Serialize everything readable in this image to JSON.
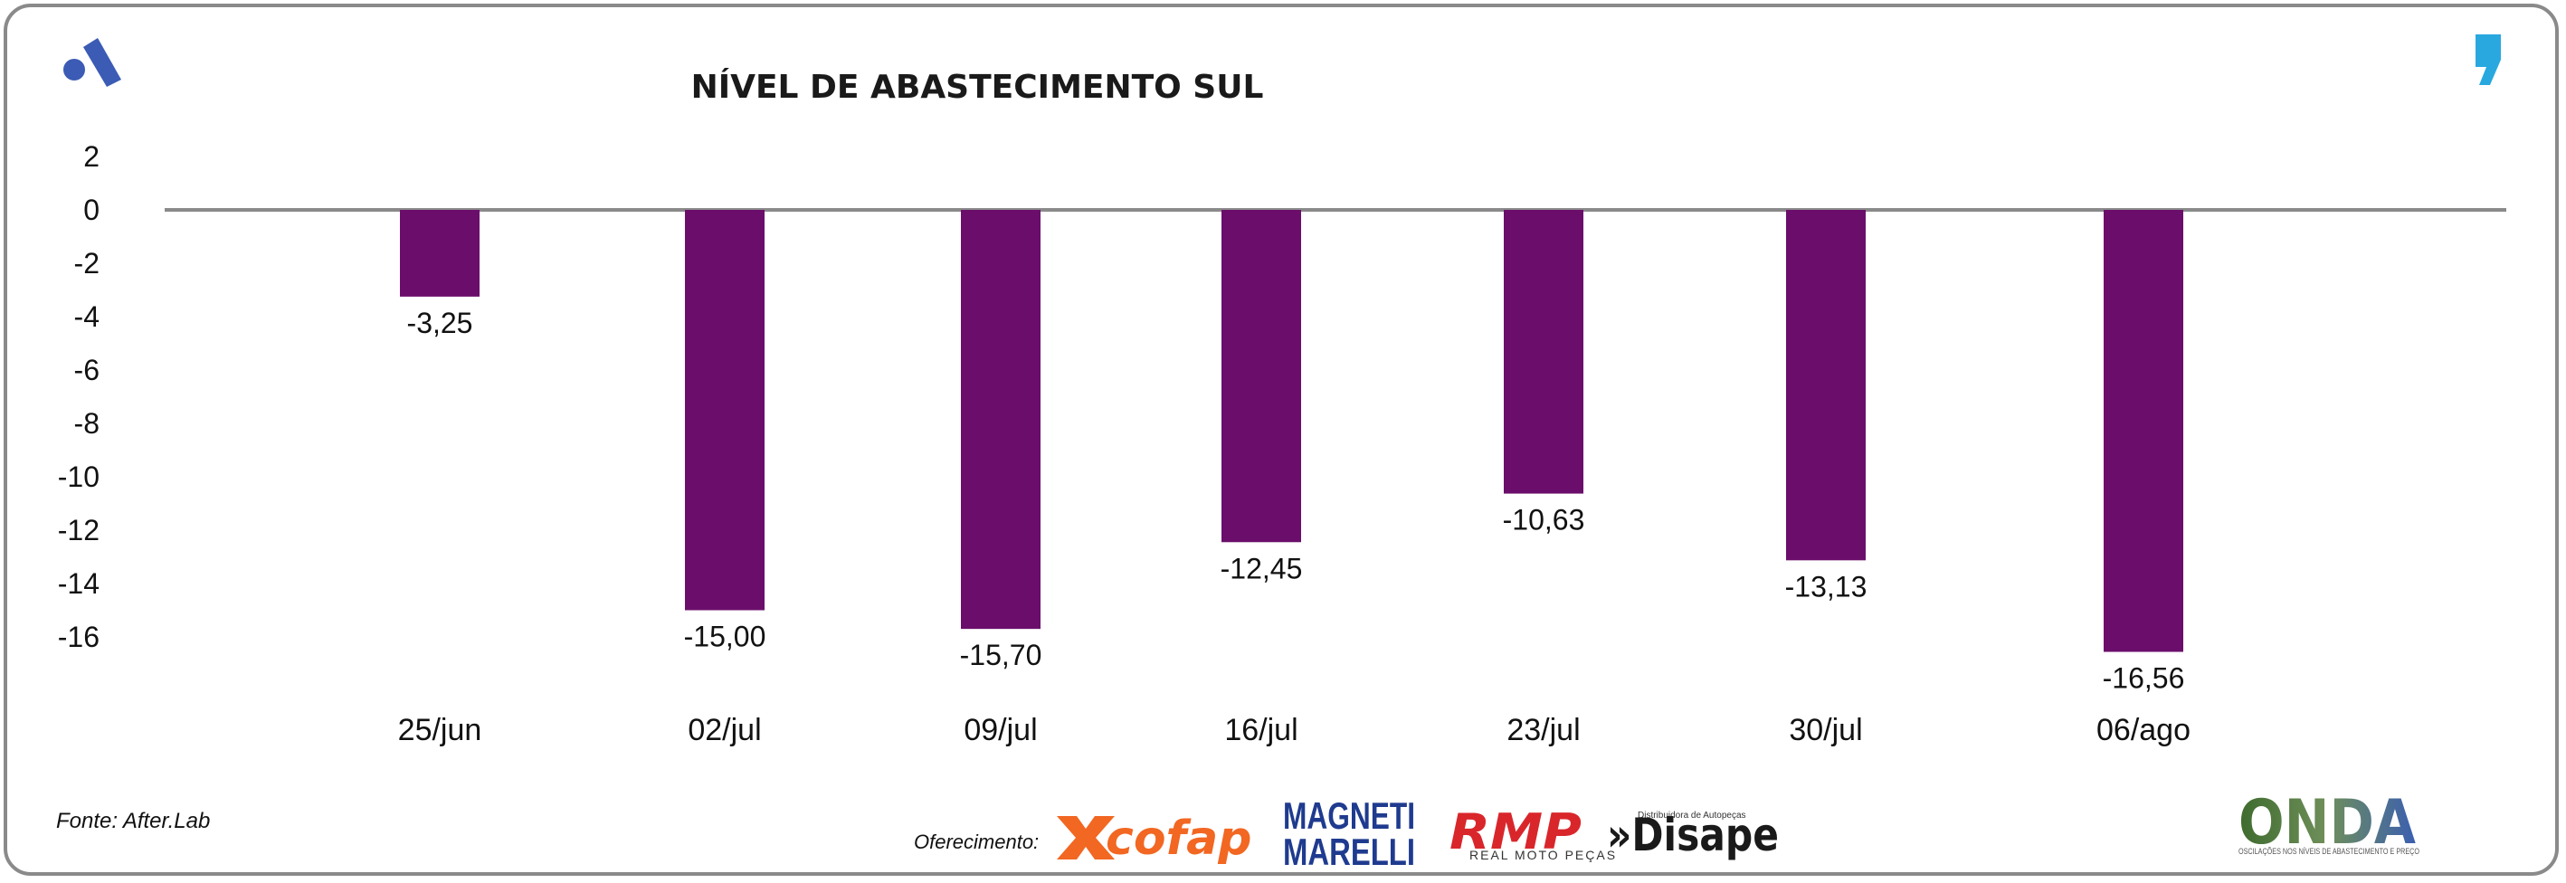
{
  "chart_data": {
    "type": "bar",
    "title": "NÍVEL DE ABASTECIMENTO SUL",
    "categories": [
      "25/jun",
      "02/jul",
      "09/jul",
      "16/jul",
      "23/jul",
      "30/jul",
      "06/ago"
    ],
    "values": [
      -3.25,
      -15.0,
      -15.7,
      -12.45,
      -10.63,
      -13.13,
      -16.56
    ],
    "value_labels": [
      "-3,25",
      "-15,00",
      "-15,70",
      "-12,45",
      "-10,63",
      "-13,13",
      "-16,56"
    ],
    "yticks": [
      "2",
      "0",
      "-2",
      "-4",
      "-6",
      "-8",
      "-10",
      "-12",
      "-14",
      "-16"
    ],
    "ylim": [
      -16,
      2
    ],
    "xlabel": "",
    "ylabel": "",
    "bar_color": "#6b0e6b",
    "grid": false
  },
  "footer": {
    "source": "Fonte: After.Lab",
    "sponsor_label": "Oferecimento:"
  },
  "logos": {
    "cofap": "cofap",
    "magneti_top": "MAGNETI",
    "magneti_bottom": "MARELLI",
    "rmp": "RMP",
    "rmp_sub": "REAL MOTO PEÇAS",
    "disape_tag": "Distribuidora de Autopeças",
    "disape": "»Disape",
    "onda": "ONDA",
    "onda_sub": "OSCILAÇÕES NOS NÍVEIS DE ABASTECIMENTO E PREÇO"
  },
  "colors": {
    "brand_blue": "#3b5bb5",
    "quote_blue": "#29a8e0",
    "axis_line": "#8a8a8a"
  }
}
